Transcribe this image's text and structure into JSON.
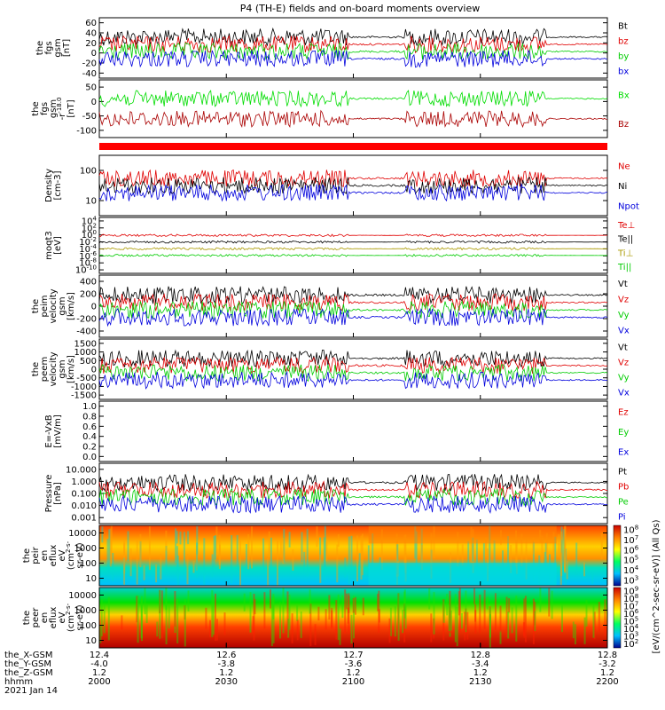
{
  "title": "P4 (TH-E) fields and on-board moments overview",
  "footer": {
    "row_labels": [
      "the_X-GSM",
      "the_Y-GSM",
      "the_Z-GSM",
      "hhmm",
      "2021 Jan 14"
    ],
    "columns": [
      {
        "x": "12.4",
        "y": "-4.0",
        "z": "1.2",
        "t": "2000"
      },
      {
        "x": "12.6",
        "y": "-3.8",
        "z": "1.2",
        "t": "2030"
      },
      {
        "x": "12.7",
        "y": "-3.6",
        "z": "1.2",
        "t": "2100"
      },
      {
        "x": "12.8",
        "y": "-3.4",
        "z": "1.2",
        "t": "2130"
      },
      {
        "x": "12.8",
        "y": "-3.2",
        "z": "1.2",
        "t": "2200"
      }
    ]
  },
  "colorbar_label": "[eV/(cm^2-sec-sr-eV)] (All Qs)",
  "chart_data": [
    {
      "type": "line",
      "ylabel": [
        "the",
        "fgs",
        "gsm",
        "[nT]"
      ],
      "ticks": [
        "60",
        "40",
        "20",
        "0",
        "-20",
        "-40"
      ],
      "legend": [
        {
          "name": "Bt",
          "color": "#000000"
        },
        {
          "name": "bz",
          "color": "#e00000"
        },
        {
          "name": "by",
          "color": "#00cc00"
        },
        {
          "name": "bx",
          "color": "#0000dd"
        }
      ]
    },
    {
      "type": "line",
      "ylabel": [
        "the",
        "fgs",
        "gsm",
        "-r^-18.0",
        "[nT]"
      ],
      "ticks": [
        "50",
        "0",
        "-50",
        "-100"
      ],
      "legend": [
        {
          "name": "Bx",
          "color": "#00dd00"
        },
        {
          "name": "Bz",
          "color": "#aa0000"
        }
      ]
    },
    {
      "type": "line",
      "ylabel": [
        "Density",
        "[cm-3]"
      ],
      "ticks": [
        "100",
        "10"
      ],
      "legend": [
        {
          "name": "Ne",
          "color": "#e00000"
        },
        {
          "name": "Ni",
          "color": "#000000"
        },
        {
          "name": "Npot",
          "color": "#0000dd"
        }
      ]
    },
    {
      "type": "line",
      "ylabel": [
        "moqt3",
        "[eV]"
      ],
      "ticks": [
        "10^4",
        "10^2",
        "10^0",
        "10^-2",
        "10^-4",
        "10^-6",
        "10^-8",
        "10^-10"
      ],
      "legend": [
        {
          "name": "Te⊥",
          "color": "#e00000"
        },
        {
          "name": "Te||",
          "color": "#000000"
        },
        {
          "name": "Ti⊥",
          "color": "#aa9900"
        },
        {
          "name": "Ti||",
          "color": "#00cc00"
        }
      ]
    },
    {
      "type": "line",
      "ylabel": [
        "the",
        "peim",
        "velocity",
        "gsm",
        "[km/s]"
      ],
      "ticks": [
        "400",
        "200",
        "0",
        "-200",
        "-400"
      ],
      "legend": [
        {
          "name": "Vt",
          "color": "#000000"
        },
        {
          "name": "Vz",
          "color": "#e00000"
        },
        {
          "name": "Vy",
          "color": "#00cc00"
        },
        {
          "name": "Vx",
          "color": "#0000dd"
        }
      ]
    },
    {
      "type": "line",
      "ylabel": [
        "the",
        "peem",
        "velocity",
        "gsm",
        "[km/s]"
      ],
      "ticks": [
        "1500",
        "1000",
        "500",
        "0",
        "-500",
        "-1000",
        "-1500"
      ],
      "legend": [
        {
          "name": "Vt",
          "color": "#000000"
        },
        {
          "name": "Vz",
          "color": "#e00000"
        },
        {
          "name": "Vy",
          "color": "#00cc00"
        },
        {
          "name": "Vx",
          "color": "#0000dd"
        }
      ]
    },
    {
      "type": "line",
      "ylabel": [
        "E=-VxB",
        "[mV/m]"
      ],
      "ticks": [
        "1.0",
        "0.8",
        "0.6",
        "0.4",
        "0.2",
        "0.0"
      ],
      "legend": [
        {
          "name": "Ez",
          "color": "#e00000"
        },
        {
          "name": "Ey",
          "color": "#00cc00"
        },
        {
          "name": "Ex",
          "color": "#0000dd"
        }
      ]
    },
    {
      "type": "line",
      "ylabel": [
        "Pressure",
        "[nPa]"
      ],
      "ticks": [
        "10.000",
        "1.000",
        "0.100",
        "0.010",
        "0.001"
      ],
      "legend": [
        {
          "name": "Pt",
          "color": "#000000"
        },
        {
          "name": "Pb",
          "color": "#e00000"
        },
        {
          "name": "Pe",
          "color": "#00cc00"
        },
        {
          "name": "Pi",
          "color": "#0000dd"
        }
      ]
    },
    {
      "type": "heatmap",
      "ylabel": [
        "the",
        "peir",
        "en",
        "eflux",
        "eV",
        "(cm^2-s-",
        "sr-eV)"
      ],
      "ticks": [
        "10000",
        "1000",
        "100",
        "10"
      ],
      "cb_ticks": [
        "10^8",
        "10^7",
        "10^6",
        "10^5",
        "10^4",
        "10^3"
      ]
    },
    {
      "type": "heatmap",
      "ylabel": [
        "the",
        "peer",
        "en",
        "eflux",
        "eV",
        "(cm^2-s-",
        "sr-eV)"
      ],
      "ticks": [
        "10000",
        "1000",
        "100",
        "10"
      ],
      "cb_ticks": [
        "10^9",
        "10^8",
        "10^7",
        "10^6",
        "10^5",
        "10^4",
        "10^3",
        "10^2"
      ]
    }
  ]
}
